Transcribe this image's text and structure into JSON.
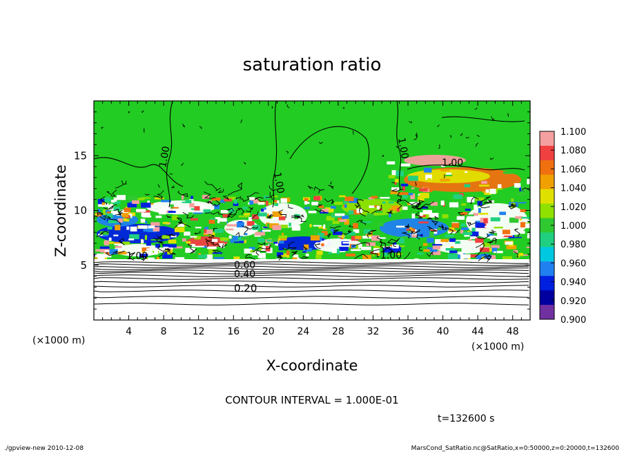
{
  "chart_data": {
    "type": "heatmap",
    "title": "saturation ratio",
    "xlabel": "X-coordinate",
    "ylabel": "Z-coordinate",
    "x_unit_label_left": "(×1000 m)",
    "x_unit_label_right": "(×1000 m)",
    "xlim": [
      0,
      50
    ],
    "ylim": [
      0,
      20
    ],
    "x_ticks": [
      4,
      8,
      12,
      16,
      20,
      24,
      28,
      32,
      36,
      40,
      44,
      48
    ],
    "y_ticks": [
      5,
      10,
      15
    ],
    "contour_interval_text": "CONTOUR INTERVAL = 1.000E-01",
    "time_text": "t=132600 s",
    "contour_labels": [
      "1.00",
      "1.00",
      "1.00",
      "1.00",
      "1.00",
      "1.00",
      "0.60",
      "0.40",
      "0.20"
    ],
    "colorbar": {
      "ticks": [
        "1.100",
        "1.080",
        "1.060",
        "1.040",
        "1.020",
        "1.000",
        "0.980",
        "0.960",
        "0.940",
        "0.920",
        "0.900"
      ],
      "colors": [
        "#f5a0a0",
        "#f04040",
        "#f07010",
        "#f0a000",
        "#e0e000",
        "#90e000",
        "#30c830",
        "#20d080",
        "#00c8e0",
        "#2080f0",
        "#0020e0",
        "#0000a0",
        "#7030a0"
      ]
    }
  },
  "footer": {
    "left": "./gpview-new  2010-12-08",
    "right": "MarsCond_SatRatio.nc@SatRatio,x=0:50000,z=0:20000,t=132600"
  }
}
